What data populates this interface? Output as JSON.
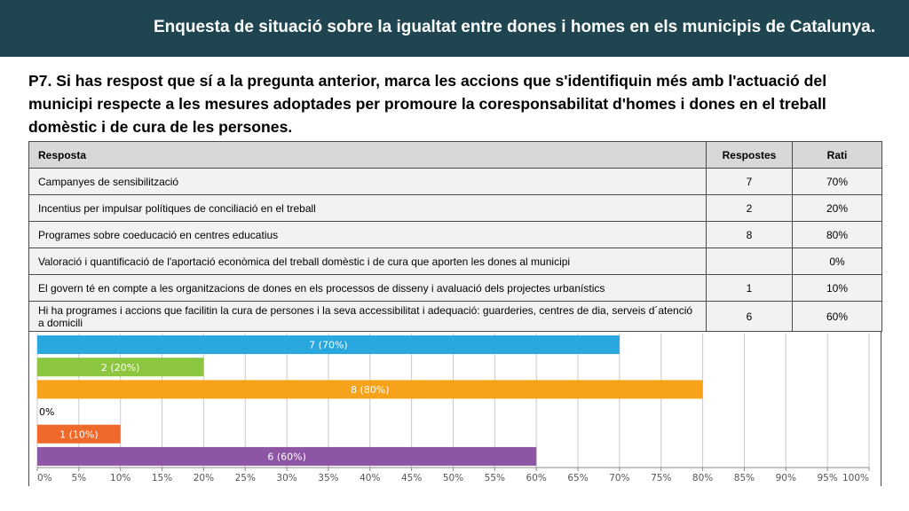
{
  "header": {
    "title": "Enquesta de situació sobre la  igualtat entre dones i homes en els municipis de Catalunya."
  },
  "question": {
    "text": "P7.  Si has respost que sí a la pregunta anterior, marca les accions que s'identifiquin més amb l'actuació del municipi respecte a les mesures adoptades per promoure la coresponsabilitat d'homes i dones en el treball domèstic i de cura de les persones."
  },
  "table": {
    "headers": {
      "resposta": "Resposta",
      "respostes": "Respostes",
      "rati": "Rati"
    },
    "rows": [
      {
        "resposta": "Campanyes de sensibilització",
        "respostes": "7",
        "rati": "70%"
      },
      {
        "resposta": "Incentius per impulsar polítiques de conciliació en el treball",
        "respostes": "2",
        "rati": "20%"
      },
      {
        "resposta": "Programes sobre coeducació en centres educatius",
        "respostes": "8",
        "rati": "80%"
      },
      {
        "resposta": "Valoració i quantificació de l'aportació econòmica del treball domèstic i de cura que aporten les dones al municipi",
        "respostes": "",
        "rati": "0%"
      },
      {
        "resposta": "El govern té en compte a les organitzacions de dones en els processos de disseny i avaluació dels projectes urbanístics",
        "respostes": "1",
        "rati": "10%"
      },
      {
        "resposta": "Hi ha programes i accions que facilitin la cura de persones i la seva accessibilitat i adequació: guarderies, centres de dia, serveis d´atenció a domicili",
        "respostes": "6",
        "rati": "60%"
      }
    ]
  },
  "chart_data": {
    "type": "bar",
    "orientation": "horizontal",
    "values": [
      70,
      20,
      80,
      0,
      10,
      60
    ],
    "data_labels": [
      "7 (70%)",
      "2 (20%)",
      "8 (80%)",
      "0%",
      "1 (10%)",
      "6 (60%)"
    ],
    "bar_colors": [
      "#29a8df",
      "#8cc63f",
      "#f7a21b",
      "#cccccc",
      "#ef6a2a",
      "#8e55a5"
    ],
    "xlim": [
      0,
      100
    ],
    "xticks": [
      "0%",
      "5%",
      "10%",
      "15%",
      "20%",
      "25%",
      "30%",
      "35%",
      "40%",
      "45%",
      "50%",
      "55%",
      "60%",
      "65%",
      "70%",
      "75%",
      "80%",
      "85%",
      "90%",
      "95%",
      "100%"
    ],
    "grid": true
  }
}
